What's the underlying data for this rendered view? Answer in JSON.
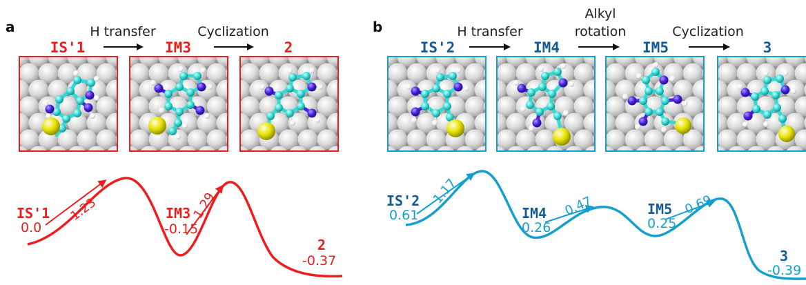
{
  "colors": {
    "a": "#ee1c1c",
    "b": "#149fcf",
    "b_title": "#145b96",
    "arrow": "#111111",
    "atom_c": "#35d9d4",
    "atom_n": "#4b1fe0",
    "atom_h": "#f4f4f4",
    "atom_s": "#e4e100"
  },
  "panels": [
    {
      "letter": "a",
      "states": [
        "IS'1",
        "IM3",
        "2"
      ],
      "steps": [
        {
          "lines": [
            "H transfer"
          ]
        },
        {
          "lines": [
            "Cyclization"
          ]
        }
      ],
      "profile": {
        "labels": [
          {
            "name": "IS'1",
            "energy": "0.0"
          },
          {
            "name": "IM3",
            "energy": "-0.15"
          },
          {
            "name": "2",
            "energy": "-0.37"
          }
        ],
        "barriers": [
          "1.23",
          "1.29"
        ]
      }
    },
    {
      "letter": "b",
      "states": [
        "IS'2",
        "IM4",
        "IM5",
        "3"
      ],
      "steps": [
        {
          "lines": [
            "H transfer"
          ]
        },
        {
          "lines": [
            "Alkyl",
            "rotation"
          ]
        },
        {
          "lines": [
            "Cyclization"
          ]
        }
      ],
      "profile": {
        "labels": [
          {
            "name": "IS'2",
            "energy": "0.61"
          },
          {
            "name": "IM4",
            "energy": "0.26"
          },
          {
            "name": "IM5",
            "energy": "0.25"
          },
          {
            "name": "3",
            "energy": "-0.39"
          }
        ],
        "barriers": [
          "1.17",
          "0.47",
          "0.69"
        ]
      }
    }
  ]
}
